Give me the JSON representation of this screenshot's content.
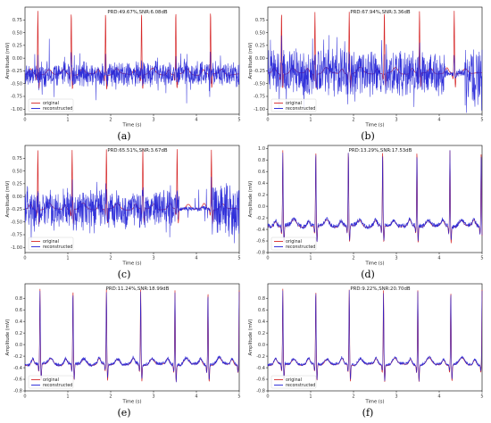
{
  "figure": {
    "legend": {
      "original": "original",
      "reconstructed": "reconstructed"
    },
    "colors": {
      "original": "#d62728",
      "reconstructed": "#1f1fd6"
    }
  },
  "chart_data": [
    {
      "type": "line",
      "panel_label": "(a)",
      "annotation": "PRD:49.67%,SNR:6.08dB",
      "xlabel": "Time (s)",
      "ylabel": "Amplitude (mV)",
      "xlim": [
        0,
        5
      ],
      "ylim": [
        -1.1,
        1.0
      ],
      "xticks": [
        0,
        1,
        2,
        3,
        4,
        5
      ],
      "yticks": [
        -1.0,
        -0.75,
        -0.5,
        -0.25,
        0.0,
        0.25,
        0.5,
        0.75
      ],
      "ytick_labels": [
        "-1.00",
        "-0.75",
        "-0.50",
        "-0.25",
        "0.00",
        "0.25",
        "0.50",
        "0.75"
      ],
      "baseline": -0.32,
      "r_peak": 0.92,
      "noise": 0.2,
      "beat_times": [
        0.3,
        1.08,
        1.88,
        2.72,
        3.52,
        4.33
      ],
      "series": [
        {
          "name": "original"
        },
        {
          "name": "reconstructed"
        }
      ],
      "legend_position": "lower-left"
    },
    {
      "type": "line",
      "panel_label": "(b)",
      "annotation": "PRD:67.94%,SNR:3.36dB",
      "xlabel": "Time (s)",
      "ylabel": "Amplitude (mV)",
      "xlim": [
        0,
        5
      ],
      "ylim": [
        -1.1,
        1.0
      ],
      "xticks": [
        0,
        1,
        2,
        3,
        4,
        5
      ],
      "yticks": [
        -1.0,
        -0.75,
        -0.5,
        -0.25,
        0.0,
        0.25,
        0.5,
        0.75
      ],
      "ytick_labels": [
        "-1.00",
        "-0.75",
        "-0.50",
        "-0.25",
        "0.00",
        "0.25",
        "0.50",
        "0.75"
      ],
      "baseline": -0.3,
      "r_peak": 0.92,
      "noise": 0.38,
      "beat_times": [
        0.32,
        1.1,
        1.9,
        2.72,
        3.54,
        4.35
      ],
      "series": [
        {
          "name": "original"
        },
        {
          "name": "reconstructed"
        }
      ],
      "legend_position": "lower-left"
    },
    {
      "type": "line",
      "panel_label": "(c)",
      "annotation": "PRD:65.51%,SNR:3.67dB",
      "xlabel": "Time (s)",
      "ylabel": "Amplitude (mV)",
      "xlim": [
        0,
        5
      ],
      "ylim": [
        -1.1,
        1.0
      ],
      "xticks": [
        0,
        1,
        2,
        3,
        4,
        5
      ],
      "yticks": [
        -1.0,
        -0.75,
        -0.5,
        -0.25,
        0.0,
        0.25,
        0.5,
        0.75
      ],
      "ytick_labels": [
        "-1.00",
        "-0.75",
        "-0.50",
        "-0.25",
        "0.00",
        "0.25",
        "0.50",
        "0.75"
      ],
      "baseline": -0.25,
      "r_peak": 0.92,
      "noise": 0.3,
      "beat_times": [
        0.3,
        1.1,
        1.9,
        2.75,
        3.55,
        4.35
      ],
      "series": [
        {
          "name": "original"
        },
        {
          "name": "reconstructed"
        }
      ],
      "legend_position": "lower-left"
    },
    {
      "type": "line",
      "panel_label": "(d)",
      "annotation": "PRD:13.29%,SNR:17.53dB",
      "xlabel": "Time (s)",
      "ylabel": "Amplitude (mV)",
      "xlim": [
        0,
        5
      ],
      "ylim": [
        -0.8,
        1.05
      ],
      "xticks": [
        0,
        1,
        2,
        3,
        4,
        5
      ],
      "yticks": [
        -0.8,
        -0.6,
        -0.4,
        -0.2,
        0.0,
        0.2,
        0.4,
        0.6,
        0.8,
        1.0
      ],
      "ytick_labels": [
        "-0.8",
        "-0.6",
        "-0.4",
        "-0.2",
        "0.0",
        "0.2",
        "0.4",
        "0.6",
        "0.8",
        "1.0"
      ],
      "baseline": -0.35,
      "r_peak": 0.97,
      "noise": 0.04,
      "beat_times": [
        0.35,
        1.12,
        1.88,
        2.68,
        3.48,
        4.25,
        4.98
      ],
      "series": [
        {
          "name": "original"
        },
        {
          "name": "reconstructed"
        }
      ],
      "legend_position": "lower-left"
    },
    {
      "type": "line",
      "panel_label": "(e)",
      "annotation": "PRD:11.24%,SNR:18.99dB",
      "xlabel": "Time (s)",
      "ylabel": "Amplitude (mV)",
      "xlim": [
        0,
        5
      ],
      "ylim": [
        -0.8,
        1.05
      ],
      "xticks": [
        0,
        1,
        2,
        3,
        4,
        5
      ],
      "yticks": [
        -0.8,
        -0.6,
        -0.4,
        -0.2,
        0.0,
        0.2,
        0.4,
        0.6,
        0.8
      ],
      "ytick_labels": [
        "-0.8",
        "-0.6",
        "-0.4",
        "-0.2",
        "0.0",
        "0.2",
        "0.4",
        "0.6",
        "0.8"
      ],
      "baseline": -0.35,
      "r_peak": 0.95,
      "noise": 0.03,
      "beat_times": [
        0.35,
        1.12,
        1.9,
        2.7,
        3.5,
        4.27,
        5.0
      ],
      "series": [
        {
          "name": "original"
        },
        {
          "name": "reconstructed"
        }
      ],
      "legend_position": "lower-left"
    },
    {
      "type": "line",
      "panel_label": "(f)",
      "annotation": "PRD:9.22%,SNR:20.70dB",
      "xlabel": "Time (s)",
      "ylabel": "Amplitude (mV)",
      "xlim": [
        0,
        5
      ],
      "ylim": [
        -0.8,
        1.05
      ],
      "xticks": [
        0,
        1,
        2,
        3,
        4,
        5
      ],
      "yticks": [
        -0.8,
        -0.6,
        -0.4,
        -0.2,
        0.0,
        0.2,
        0.4,
        0.6,
        0.8
      ],
      "ytick_labels": [
        "-0.8",
        "-0.6",
        "-0.4",
        "-0.2",
        "0.0",
        "0.2",
        "0.4",
        "0.6",
        "0.8"
      ],
      "baseline": -0.35,
      "r_peak": 0.95,
      "noise": 0.025,
      "beat_times": [
        0.35,
        1.12,
        1.9,
        2.7,
        3.5,
        4.27,
        5.0
      ],
      "series": [
        {
          "name": "original"
        },
        {
          "name": "reconstructed"
        }
      ],
      "legend_position": "lower-left"
    }
  ]
}
